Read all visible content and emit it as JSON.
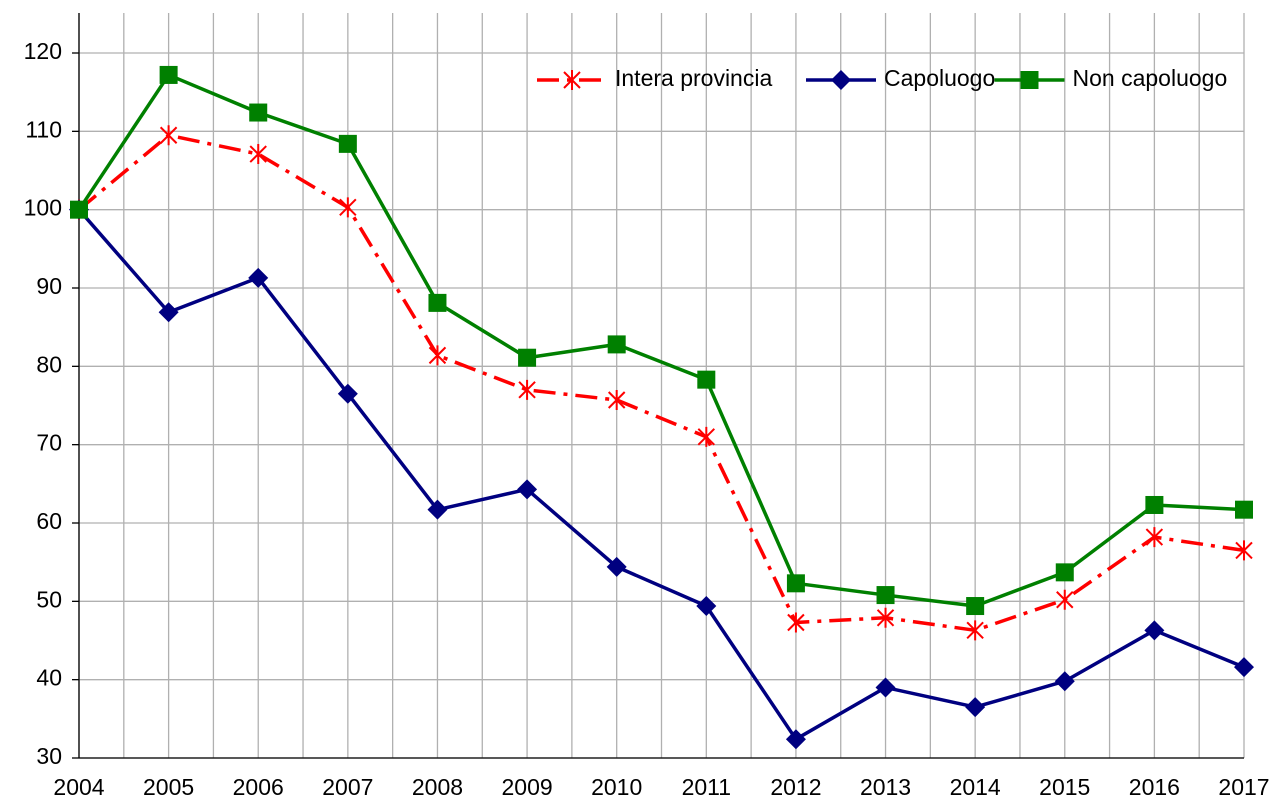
{
  "chart_data": {
    "type": "line",
    "x": [
      2004,
      2005,
      2006,
      2007,
      2008,
      2009,
      2010,
      2011,
      2012,
      2013,
      2014,
      2015,
      2016,
      2017
    ],
    "xlim": [
      2004,
      2017
    ],
    "xticks": [
      2004,
      2005,
      2006,
      2007,
      2008,
      2009,
      2010,
      2011,
      2012,
      2013,
      2014,
      2015,
      2016,
      2017
    ],
    "ylim": [
      30,
      120
    ],
    "yticks": [
      30,
      40,
      50,
      60,
      70,
      80,
      90,
      100,
      110,
      120
    ],
    "grid": true,
    "legend": "top-right",
    "series": [
      {
        "name": "Intera provincia",
        "color": "#ff0000",
        "dash": "dashdot",
        "marker": "star",
        "values": [
          100,
          109.5,
          107.1,
          100.3,
          81.4,
          77,
          75.7,
          71,
          47.3,
          47.9,
          46.3,
          50.2,
          58.2,
          56.5
        ]
      },
      {
        "name": "Capoluogo",
        "color": "#000080",
        "dash": "solid",
        "marker": "diamond",
        "values": [
          100,
          86.9,
          91.3,
          76.5,
          61.7,
          64.3,
          54.4,
          49.4,
          32.4,
          39,
          36.5,
          39.8,
          46.3,
          41.6
        ]
      },
      {
        "name": "Non capoluogo",
        "color": "#008000",
        "dash": "solid",
        "marker": "square",
        "values": [
          100,
          117.2,
          112.4,
          108.4,
          88.1,
          81.1,
          82.8,
          78.3,
          52.3,
          50.8,
          49.4,
          53.7,
          62.3,
          61.7
        ]
      }
    ]
  }
}
